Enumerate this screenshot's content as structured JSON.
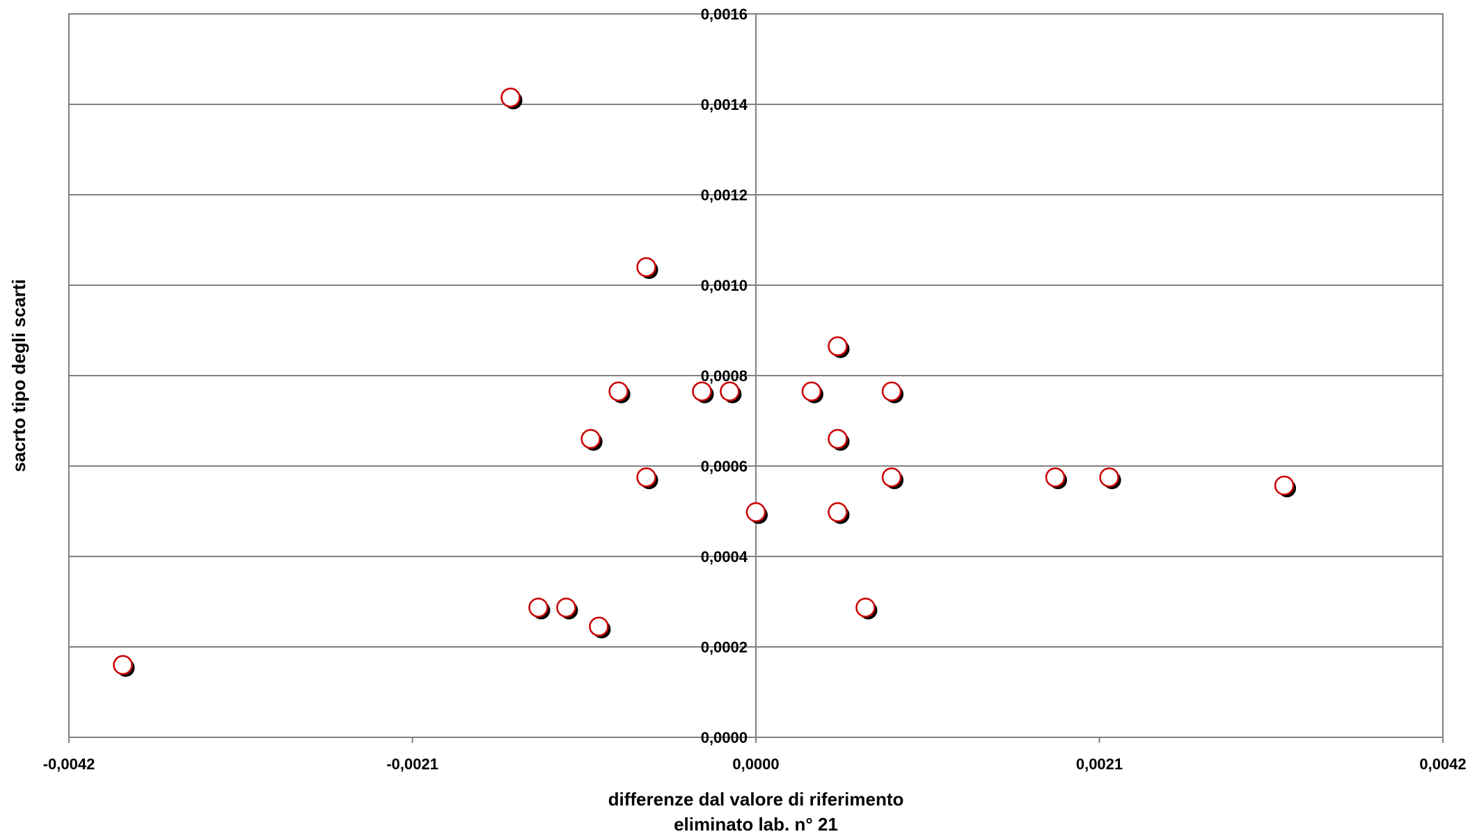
{
  "chart_data": {
    "type": "scatter",
    "xlabel": "differenze dal valore di riferimento",
    "xlabel_line2": "eliminato lab. n° 21",
    "ylabel": "sacrto tipo degli scarti",
    "xlim": [
      -0.0042,
      0.0042
    ],
    "ylim": [
      0.0,
      0.0016
    ],
    "x_ticks": [
      -0.0042,
      -0.0021,
      0.0,
      0.0021,
      0.0042
    ],
    "x_tick_labels": [
      "-0,0042",
      "-0,0021",
      "0,0000",
      "0,0021",
      "0,0042"
    ],
    "y_ticks": [
      0.0,
      0.0002,
      0.0004,
      0.0006,
      0.0008,
      0.001,
      0.0012,
      0.0014,
      0.0016
    ],
    "y_tick_labels": [
      "0,0000",
      "0,0002",
      "0,0004",
      "0,0006",
      "0,0008",
      "0,0010",
      "0,0012",
      "0,0014",
      "0,0016"
    ],
    "grid": {
      "horizontal": true,
      "vertical": false
    },
    "marker": {
      "fill": "#ffffff",
      "edge": "#cc0000",
      "shadow": "#000000"
    },
    "points": [
      {
        "x": -0.00387,
        "y": 0.00016
      },
      {
        "x": -0.0015,
        "y": 0.001415
      },
      {
        "x": -0.00067,
        "y": 0.00104
      },
      {
        "x": -0.00084,
        "y": 0.000765
      },
      {
        "x": -0.00101,
        "y": 0.00066
      },
      {
        "x": -0.00067,
        "y": 0.000575
      },
      {
        "x": -0.00133,
        "y": 0.000287
      },
      {
        "x": -0.00116,
        "y": 0.000287
      },
      {
        "x": -0.00096,
        "y": 0.000245
      },
      {
        "x": -0.00033,
        "y": 0.000765
      },
      {
        "x": -0.00016,
        "y": 0.000765
      },
      {
        "x": 0.0,
        "y": 0.000498
      },
      {
        "x": 0.00034,
        "y": 0.000765
      },
      {
        "x": 0.0005,
        "y": 0.000865
      },
      {
        "x": 0.0005,
        "y": 0.00066
      },
      {
        "x": 0.0005,
        "y": 0.000498
      },
      {
        "x": 0.00083,
        "y": 0.000765
      },
      {
        "x": 0.00083,
        "y": 0.000575
      },
      {
        "x": 0.00067,
        "y": 0.000287
      },
      {
        "x": 0.00183,
        "y": 0.000575
      },
      {
        "x": 0.00216,
        "y": 0.000575
      },
      {
        "x": 0.00323,
        "y": 0.000557
      }
    ]
  }
}
